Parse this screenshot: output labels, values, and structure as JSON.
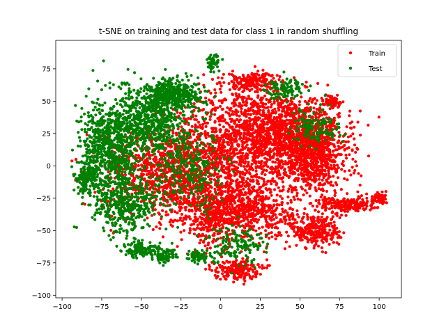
{
  "chart_data": {
    "type": "scatter",
    "title": "t-SNE on training and test data for class 1 in random shuffling",
    "xlabel": "",
    "ylabel": "",
    "xlim": [
      -104,
      114
    ],
    "ylim": [
      -102,
      97
    ],
    "xticks": [
      -100,
      -75,
      -50,
      -25,
      0,
      25,
      50,
      75,
      100
    ],
    "yticks": [
      -100,
      -75,
      -50,
      -25,
      0,
      25,
      50,
      75
    ],
    "grid": false,
    "legend_position": "top-right",
    "series": [
      {
        "name": "Train",
        "color": "#ff0000",
        "blobs": [
          {
            "center": [
              10,
              20
            ],
            "spread": [
              40,
              42
            ],
            "count": 1100
          },
          {
            "center": [
              45,
              25
            ],
            "spread": [
              30,
              30
            ],
            "count": 1100
          },
          {
            "center": [
              60,
              5
            ],
            "spread": [
              22,
              30
            ],
            "count": 600
          },
          {
            "center": [
              -20,
              -15
            ],
            "spread": [
              40,
              30
            ],
            "count": 700
          },
          {
            "center": [
              20,
              -35
            ],
            "spread": [
              25,
              22
            ],
            "count": 500
          },
          {
            "center": [
              -40,
              0
            ],
            "spread": [
              35,
              30
            ],
            "count": 500
          },
          {
            "center": [
              80,
              -30
            ],
            "spread": [
              18,
              6
            ],
            "count": 200
          },
          {
            "center": [
              100,
              -25
            ],
            "spread": [
              5,
              4
            ],
            "count": 60
          },
          {
            "center": [
              60,
              -50
            ],
            "spread": [
              16,
              14
            ],
            "count": 300
          },
          {
            "center": [
              10,
              -80
            ],
            "spread": [
              14,
              8
            ],
            "count": 200
          },
          {
            "center": [
              70,
              50
            ],
            "spread": [
              6,
              4
            ],
            "count": 60
          },
          {
            "center": [
              20,
              65
            ],
            "spread": [
              18,
              8
            ],
            "count": 200
          },
          {
            "center": [
              -5,
              -40
            ],
            "spread": [
              18,
              20
            ],
            "count": 300
          }
        ]
      },
      {
        "name": "Test",
        "color": "#008000",
        "blobs": [
          {
            "center": [
              -70,
              15
            ],
            "spread": [
              18,
              35
            ],
            "count": 700
          },
          {
            "center": [
              -45,
              35
            ],
            "spread": [
              22,
              25
            ],
            "count": 600
          },
          {
            "center": [
              -30,
              55
            ],
            "spread": [
              20,
              12
            ],
            "count": 400
          },
          {
            "center": [
              -60,
              -30
            ],
            "spread": [
              20,
              22
            ],
            "count": 400
          },
          {
            "center": [
              -85,
              -10
            ],
            "spread": [
              8,
              12
            ],
            "count": 150
          },
          {
            "center": [
              -50,
              -65
            ],
            "spread": [
              12,
              6
            ],
            "count": 120
          },
          {
            "center": [
              -5,
              80
            ],
            "spread": [
              4,
              6
            ],
            "count": 60
          },
          {
            "center": [
              -20,
              -5
            ],
            "spread": [
              25,
              30
            ],
            "count": 300
          },
          {
            "center": [
              10,
              -60
            ],
            "spread": [
              20,
              15
            ],
            "count": 150
          },
          {
            "center": [
              40,
              60
            ],
            "spread": [
              12,
              8
            ],
            "count": 100
          },
          {
            "center": [
              60,
              30
            ],
            "spread": [
              15,
              15
            ],
            "count": 120
          },
          {
            "center": [
              -35,
              -70
            ],
            "spread": [
              8,
              5
            ],
            "count": 80
          },
          {
            "center": [
              -15,
              -70
            ],
            "spread": [
              6,
              5
            ],
            "count": 60
          }
        ]
      }
    ]
  }
}
